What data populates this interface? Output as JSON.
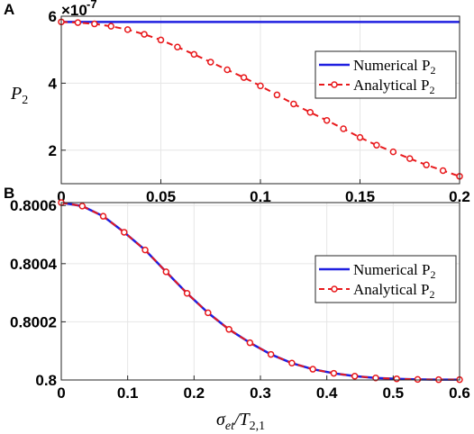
{
  "chart_data": [
    {
      "panel": "A",
      "type": "line",
      "exponent_label": "×10^-7",
      "exponent_base": "×10",
      "exponent_power": "-7",
      "ylabel_main": "P",
      "ylabel_sub": "2",
      "xlim": [
        0,
        0.2
      ],
      "ylim": [
        1,
        6
      ],
      "xticks": [
        0,
        0.05,
        0.1,
        0.15,
        0.2
      ],
      "xtick_labels": [
        "0",
        "0.05",
        "0.1",
        "0.15",
        "0.2"
      ],
      "yticks": [
        2,
        4,
        6
      ],
      "ytick_labels": [
        "2",
        "4",
        "6"
      ],
      "grid": true,
      "legend": "top-right",
      "series": [
        {
          "name_main": "Numerical P",
          "name_sub": "2",
          "style": "solid",
          "color": "#1f1fe0",
          "x": [
            0,
            0.2
          ],
          "y": [
            5.83,
            5.83
          ]
        },
        {
          "name_main": "Analytical P",
          "name_sub": "2",
          "style": "dashed-circle",
          "color": "#e8191c",
          "x": [
            0,
            0.00833,
            0.01667,
            0.025,
            0.03333,
            0.04167,
            0.05,
            0.05833,
            0.06667,
            0.075,
            0.08333,
            0.09167,
            0.1,
            0.10833,
            0.11667,
            0.125,
            0.13333,
            0.14167,
            0.15,
            0.15833,
            0.16667,
            0.175,
            0.18333,
            0.19167,
            0.2
          ],
          "y": [
            5.83,
            5.81,
            5.77,
            5.7,
            5.6,
            5.46,
            5.29,
            5.08,
            4.86,
            4.63,
            4.4,
            4.17,
            3.92,
            3.65,
            3.38,
            3.13,
            2.89,
            2.64,
            2.38,
            2.15,
            1.95,
            1.75,
            1.56,
            1.39,
            1.22
          ]
        }
      ]
    },
    {
      "panel": "B",
      "type": "line",
      "xlabel_main": "σ",
      "xlabel_sub": "et",
      "xlabel_slash": "/T",
      "xlabel_sub2": "2,1",
      "xlim": [
        0,
        0.6
      ],
      "ylim": [
        0.8,
        0.80061
      ],
      "xticks": [
        0,
        0.1,
        0.2,
        0.3,
        0.4,
        0.5,
        0.6
      ],
      "xtick_labels": [
        "0",
        "0.1",
        "0.2",
        "0.3",
        "0.4",
        "0.5",
        "0.6"
      ],
      "yticks": [
        0.8,
        0.8002,
        0.8004,
        0.8006
      ],
      "ytick_labels": [
        "0.8",
        "0.8002",
        "0.8004",
        "0.8006"
      ],
      "grid": true,
      "legend": "right",
      "series": [
        {
          "name_main": "Numerical P",
          "name_sub": "2",
          "style": "solid",
          "color": "#1f1fe0",
          "x": [
            0,
            0.03158,
            0.06316,
            0.09474,
            0.12632,
            0.15789,
            0.18947,
            0.22105,
            0.25263,
            0.28421,
            0.31579,
            0.34737,
            0.37895,
            0.41053,
            0.44211,
            0.47368,
            0.50526,
            0.53684,
            0.56842,
            0.6
          ],
          "y": [
            0.80061,
            0.800598,
            0.800563,
            0.800508,
            0.800447,
            0.800372,
            0.800298,
            0.800231,
            0.800174,
            0.800128,
            0.800088,
            0.800058,
            0.800037,
            0.800023,
            0.800013,
            0.800007,
            0.800004,
            0.800002,
            0.800001,
            0.800001
          ]
        },
        {
          "name_main": "Analytical P",
          "name_sub": "2",
          "style": "dashed-circle",
          "color": "#e8191c",
          "x": [
            0,
            0.03158,
            0.06316,
            0.09474,
            0.12632,
            0.15789,
            0.18947,
            0.22105,
            0.25263,
            0.28421,
            0.31579,
            0.34737,
            0.37895,
            0.41053,
            0.44211,
            0.47368,
            0.50526,
            0.53684,
            0.56842,
            0.6
          ],
          "y": [
            0.80061,
            0.800598,
            0.800563,
            0.800508,
            0.800447,
            0.800372,
            0.800298,
            0.800231,
            0.800174,
            0.800128,
            0.800088,
            0.800058,
            0.800037,
            0.800023,
            0.800013,
            0.800007,
            0.800004,
            0.800002,
            0.800001,
            0.800001
          ]
        }
      ]
    }
  ],
  "panel_labels": [
    "A",
    "B"
  ]
}
